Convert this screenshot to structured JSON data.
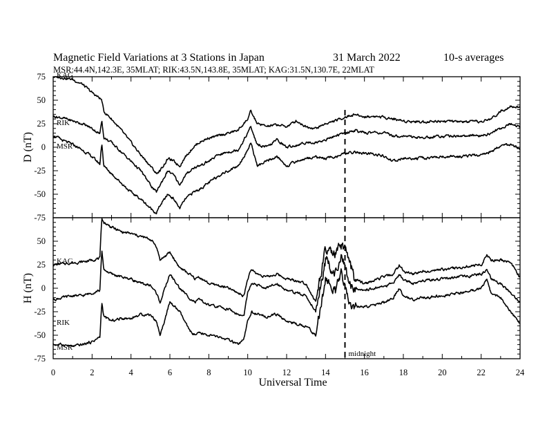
{
  "header": {
    "title": "Magnetic Field Variations at 3 Stations in Japan",
    "date": "31 March   2022",
    "averaging": "10-s averages",
    "stations_line": "MSR:44.4N,142.3E, 35MLAT;  RIK:43.5N,143.8E, 35MLAT;  KAG:31.5N,130.7E, 22MLAT"
  },
  "chart_data": [
    {
      "type": "line",
      "panel": "top",
      "ylabel": "D (nT)",
      "xlabel": "",
      "xlim": [
        0,
        24
      ],
      "ylim": [
        -75,
        75
      ],
      "yticks": [
        -75,
        -50,
        -25,
        0,
        25,
        50,
        75
      ],
      "ytick_labels": [
        "-75",
        "-50",
        "-25",
        "0",
        "25",
        "50",
        "75"
      ],
      "grid": false,
      "x": [
        0,
        0.5,
        1,
        1.5,
        2,
        2.4,
        2.5,
        2.6,
        3,
        3.5,
        4,
        4.5,
        5,
        5.3,
        5.5,
        5.9,
        6.2,
        6.5,
        6.8,
        7.2,
        7.5,
        8,
        8.5,
        9,
        9.5,
        10,
        10.15,
        10.5,
        11,
        11.5,
        12,
        12.5,
        13,
        13.5,
        14,
        14.5,
        15,
        15.5,
        16,
        16.5,
        17,
        17.5,
        18,
        19,
        20,
        21,
        22,
        22.5,
        23,
        23.5,
        24
      ],
      "series": [
        {
          "name": "KAG",
          "values": [
            75,
            74,
            72,
            67,
            58,
            52,
            50,
            38,
            30,
            18,
            5,
            -8,
            -20,
            -28,
            -25,
            -12,
            -15,
            -20,
            -10,
            0,
            5,
            10,
            12,
            15,
            18,
            30,
            38,
            25,
            22,
            24,
            22,
            28,
            22,
            20,
            25,
            28,
            32,
            35,
            32,
            33,
            32,
            30,
            28,
            27,
            28,
            27,
            27,
            30,
            38,
            44,
            42
          ]
        },
        {
          "name": "RIK",
          "values": [
            33,
            31,
            28,
            25,
            20,
            14,
            30,
            10,
            5,
            -5,
            -15,
            -25,
            -40,
            -48,
            -40,
            -25,
            -30,
            -40,
            -30,
            -22,
            -20,
            -15,
            -8,
            -5,
            -3,
            15,
            22,
            2,
            0,
            8,
            0,
            2,
            5,
            5,
            8,
            12,
            15,
            18,
            15,
            16,
            15,
            12,
            12,
            10,
            12,
            12,
            12,
            15,
            20,
            25,
            22
          ]
        },
        {
          "name": "MSR",
          "values": [
            13,
            7,
            3,
            -3,
            -10,
            -18,
            5,
            -20,
            -28,
            -38,
            -48,
            -55,
            -65,
            -70,
            -62,
            -50,
            -55,
            -65,
            -55,
            -48,
            -45,
            -38,
            -30,
            -25,
            -20,
            -3,
            5,
            -20,
            -15,
            -10,
            -20,
            -15,
            -12,
            -10,
            -12,
            -10,
            -7,
            -5,
            -7,
            -7,
            -10,
            -15,
            -12,
            -12,
            -10,
            -10,
            -8,
            -5,
            2,
            3,
            -3
          ]
        }
      ]
    },
    {
      "type": "line",
      "panel": "bottom",
      "ylabel": "H (nT)",
      "xlabel": "Universal Time",
      "xlim": [
        0,
        24
      ],
      "ylim": [
        -75,
        75
      ],
      "xticks": [
        0,
        2,
        4,
        6,
        8,
        10,
        12,
        14,
        16,
        18,
        20,
        22,
        24
      ],
      "xtick_labels": [
        "0",
        "2",
        "4",
        "6",
        "8",
        "10",
        "12",
        "14",
        "16",
        "18",
        "20",
        "22",
        "24"
      ],
      "yticks": [
        -75,
        -50,
        -25,
        0,
        25,
        50,
        75
      ],
      "ytick_labels": [
        "-75",
        "-50",
        "-25",
        "0",
        "25",
        "50",
        "75"
      ],
      "grid": false,
      "x": [
        0,
        0.5,
        1,
        1.5,
        2,
        2.4,
        2.5,
        2.6,
        3,
        3.5,
        4,
        4.5,
        5,
        5.3,
        5.5,
        6,
        6.5,
        7,
        7.3,
        7.5,
        8,
        8.5,
        9,
        9.5,
        9.8,
        10,
        10.2,
        10.5,
        11,
        11.5,
        12,
        12.5,
        13,
        13.5,
        13.8,
        14,
        14.2,
        14.5,
        14.8,
        15,
        15.2,
        15.5,
        16,
        16.5,
        17,
        17.5,
        17.8,
        18,
        18.5,
        19,
        20,
        21,
        22,
        22.3,
        22.5,
        23,
        23.5,
        24
      ],
      "series": [
        {
          "name": "KAG",
          "values": [
            25,
            26,
            27,
            28,
            30,
            32,
            75,
            70,
            65,
            60,
            58,
            55,
            52,
            45,
            30,
            38,
            22,
            15,
            10,
            12,
            5,
            3,
            0,
            -5,
            -8,
            10,
            20,
            15,
            12,
            15,
            10,
            8,
            5,
            -15,
            20,
            40,
            38,
            35,
            45,
            40,
            30,
            10,
            5,
            8,
            12,
            15,
            25,
            18,
            15,
            18,
            20,
            22,
            25,
            35,
            30,
            30,
            28,
            12
          ]
        },
        {
          "name": "RIK",
          "values": [
            -12,
            -10,
            -8,
            -8,
            -5,
            -2,
            40,
            20,
            15,
            12,
            10,
            5,
            3,
            -5,
            -15,
            15,
            0,
            -10,
            -15,
            -12,
            -18,
            -20,
            -22,
            -28,
            -30,
            -5,
            5,
            3,
            0,
            5,
            -2,
            -5,
            -8,
            -25,
            10,
            30,
            25,
            15,
            35,
            20,
            5,
            0,
            -2,
            0,
            2,
            5,
            15,
            10,
            5,
            8,
            10,
            12,
            15,
            20,
            10,
            5,
            -5,
            -15
          ]
        },
        {
          "name": "MSR",
          "values": [
            -60,
            -60,
            -62,
            -60,
            -57,
            -52,
            -15,
            -30,
            -35,
            -32,
            -32,
            -28,
            -28,
            -35,
            -50,
            -15,
            -25,
            -45,
            -50,
            -48,
            -50,
            -52,
            -55,
            -60,
            -55,
            -35,
            -25,
            -28,
            -30,
            -28,
            -35,
            -38,
            -40,
            -50,
            -15,
            10,
            5,
            -5,
            15,
            0,
            -15,
            -20,
            -20,
            -18,
            -15,
            -10,
            0,
            -8,
            -12,
            -10,
            -8,
            -5,
            0,
            10,
            -5,
            -10,
            -25,
            -38
          ]
        }
      ]
    }
  ],
  "series_labels": {
    "top": {
      "kag": "KAG",
      "rik": "RIK",
      "msr": "MSR"
    },
    "bottom": {
      "kag": "KAG",
      "rik": "RIK",
      "msr": "MSR"
    }
  },
  "marker": {
    "x": 15,
    "label": "midnight"
  }
}
